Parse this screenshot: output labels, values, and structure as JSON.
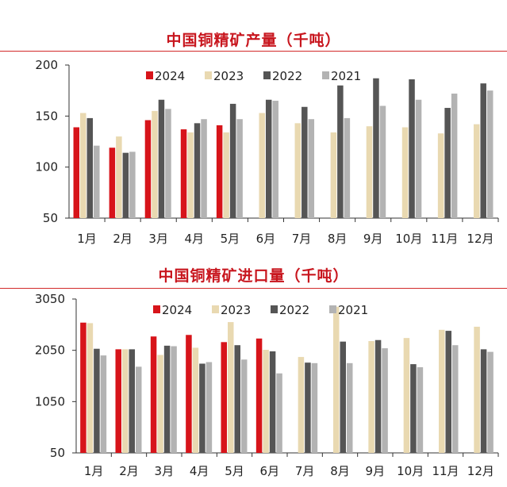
{
  "chart_data": [
    {
      "type": "bar",
      "title": "中国铜精矿产量（千吨）",
      "categories": [
        "1月",
        "2月",
        "3月",
        "4月",
        "5月",
        "6月",
        "7月",
        "8月",
        "9月",
        "10月",
        "11月",
        "12月"
      ],
      "ylim": [
        50,
        200
      ],
      "yticks": [
        "50",
        "100",
        "150",
        "200"
      ],
      "legend_position": "top",
      "grid": false,
      "series": [
        {
          "name": "2024",
          "color": "#d7141a",
          "values": [
            139,
            119,
            146,
            137,
            141,
            null,
            null,
            null,
            null,
            null,
            null,
            null
          ]
        },
        {
          "name": "2023",
          "color": "#e9d9b1",
          "values": [
            153,
            130,
            155,
            134,
            134,
            153,
            143,
            134,
            140,
            139,
            133,
            142
          ]
        },
        {
          "name": "2022",
          "color": "#555555",
          "values": [
            148,
            114,
            166,
            143,
            162,
            166,
            159,
            180,
            187,
            186,
            158,
            182
          ]
        },
        {
          "name": "2021",
          "color": "#b3b3b3",
          "values": [
            121,
            115,
            157,
            147,
            147,
            165,
            147,
            148,
            160,
            166,
            172,
            175
          ]
        }
      ]
    },
    {
      "type": "bar",
      "title": "中国铜精矿进口量（千吨）",
      "categories": [
        "1月",
        "2月",
        "3月",
        "4月",
        "5月",
        "6月",
        "7月",
        "8月",
        "9月",
        "10月",
        "11月",
        "12月"
      ],
      "ylim": [
        50,
        3050
      ],
      "yticks": [
        "50",
        "1050",
        "2050",
        "3050"
      ],
      "legend_position": "top",
      "grid": false,
      "series": [
        {
          "name": "2024",
          "color": "#d7141a",
          "values": [
            2590,
            2070,
            2320,
            2350,
            2210,
            2280,
            null,
            null,
            null,
            null,
            null,
            null
          ]
        },
        {
          "name": "2023",
          "color": "#e9d9b1",
          "values": [
            2580,
            2070,
            1960,
            2100,
            2600,
            2060,
            1920,
            2900,
            2230,
            2290,
            2450,
            2510
          ]
        },
        {
          "name": "2022",
          "color": "#555555",
          "values": [
            2080,
            2070,
            2140,
            1790,
            2150,
            2030,
            1810,
            2220,
            2250,
            1780,
            2430,
            2070
          ]
        },
        {
          "name": "2021",
          "color": "#b3b3b3",
          "values": [
            1950,
            1730,
            2130,
            1820,
            1870,
            1600,
            1800,
            1800,
            2090,
            1720,
            2150,
            2020
          ]
        }
      ]
    }
  ]
}
